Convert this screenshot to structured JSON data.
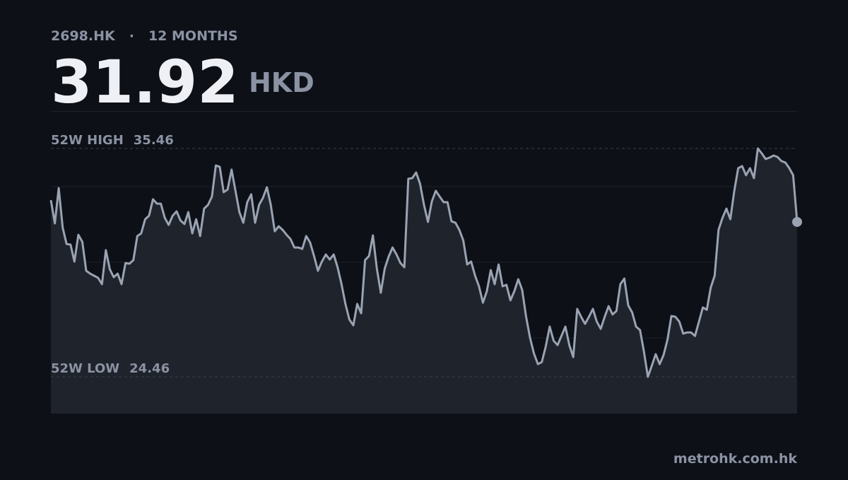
{
  "header": {
    "ticker": "2698.HK",
    "separator": "·",
    "period": "12 MONTHS",
    "price": "31.92",
    "currency": "HKD"
  },
  "chart_data": {
    "type": "line",
    "color": "#9aa3b2",
    "values": [
      32.97,
      31.85,
      33.55,
      31.65,
      30.86,
      30.83,
      30.01,
      31.3,
      30.96,
      29.57,
      29.43,
      29.33,
      29.23,
      28.92,
      30.56,
      29.64,
      29.26,
      29.43,
      28.92,
      29.94,
      29.91,
      30.08,
      31.24,
      31.37,
      32.05,
      32.22,
      33.01,
      32.8,
      32.8,
      32.12,
      31.78,
      32.22,
      32.43,
      31.99,
      31.82,
      32.39,
      31.37,
      32.05,
      31.24,
      32.56,
      32.74,
      33.14,
      34.64,
      34.57,
      33.35,
      33.48,
      34.44,
      33.42,
      32.39,
      31.88,
      32.87,
      33.25,
      31.88,
      32.74,
      33.08,
      33.59,
      32.74,
      31.47,
      31.71,
      31.54,
      31.3,
      31.1,
      30.69,
      30.69,
      30.62,
      31.24,
      30.93,
      30.28,
      29.57,
      30.01,
      30.35,
      30.11,
      30.35,
      29.74,
      28.92,
      27.97,
      27.22,
      26.94,
      27.97,
      27.52,
      30.08,
      30.28,
      31.27,
      29.67,
      28.51,
      29.67,
      30.25,
      30.69,
      30.35,
      29.94,
      29.74,
      34.0,
      34.03,
      34.3,
      33.76,
      32.74,
      31.92,
      32.91,
      33.42,
      33.14,
      32.87,
      32.87,
      31.95,
      31.88,
      31.54,
      31.03,
      29.87,
      30.01,
      29.33,
      28.82,
      28.03,
      28.58,
      29.6,
      28.92,
      29.87,
      28.82,
      28.89,
      28.14,
      28.58,
      29.16,
      28.65,
      27.35,
      26.33,
      25.58,
      25.07,
      25.17,
      25.92,
      26.88,
      26.2,
      25.99,
      26.43,
      26.88,
      25.99,
      25.41,
      27.73,
      27.35,
      27.01,
      27.35,
      27.73,
      27.12,
      26.77,
      27.35,
      27.86,
      27.46,
      27.63,
      28.92,
      29.19,
      27.9,
      27.56,
      26.88,
      26.71,
      25.68,
      24.46,
      25.0,
      25.55,
      25.07,
      25.51,
      26.26,
      27.39,
      27.35,
      27.12,
      26.54,
      26.6,
      26.6,
      26.43,
      27.12,
      27.8,
      27.69,
      28.75,
      29.33,
      31.54,
      32.12,
      32.56,
      32.05,
      33.42,
      34.51,
      34.61,
      34.17,
      34.51,
      34.03,
      35.46,
      35.22,
      34.95,
      35.02,
      35.12,
      35.05,
      34.85,
      34.78,
      34.51,
      34.17,
      31.92
    ],
    "ylim": [
      22.69,
      37.23
    ],
    "yticks": [
      26.33,
      29.98,
      33.62
    ],
    "grid": true,
    "reference_lines": [
      {
        "label": "52W HIGH",
        "value": 35.46
      },
      {
        "label": "52W LOW",
        "value": 24.46
      }
    ]
  },
  "footer": "metrohk.com.hk"
}
